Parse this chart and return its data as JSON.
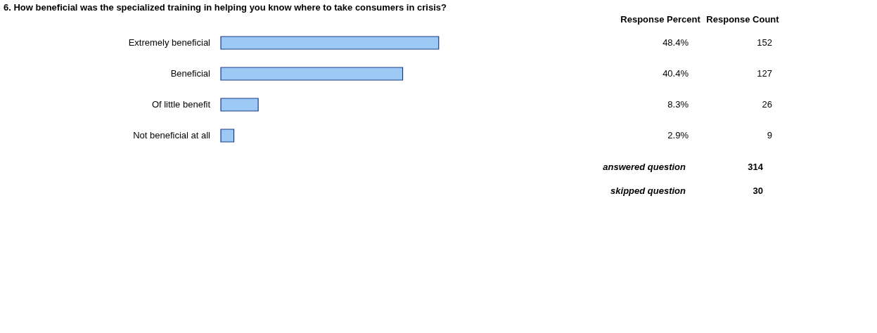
{
  "chart_data": {
    "type": "bar",
    "orientation": "horizontal",
    "title": "6. How beneficial was the specialized training in helping you know where to take consumers in crisis?",
    "categories": [
      "Extremely beneficial",
      "Beneficial",
      "Of little benefit",
      "Not beneficial at all"
    ],
    "values": [
      48.4,
      40.4,
      8.3,
      2.9
    ],
    "color": "#9ccaf5",
    "value_labels": [
      "48.4%",
      "40.4%",
      "8.3%",
      "2.9%"
    ],
    "tick_labels": "y",
    "annotations": [
      "Response Percent",
      "Response Count",
      "152",
      "127",
      "26",
      "9",
      "answered question",
      "314",
      "skipped question",
      "30"
    ]
  }
}
